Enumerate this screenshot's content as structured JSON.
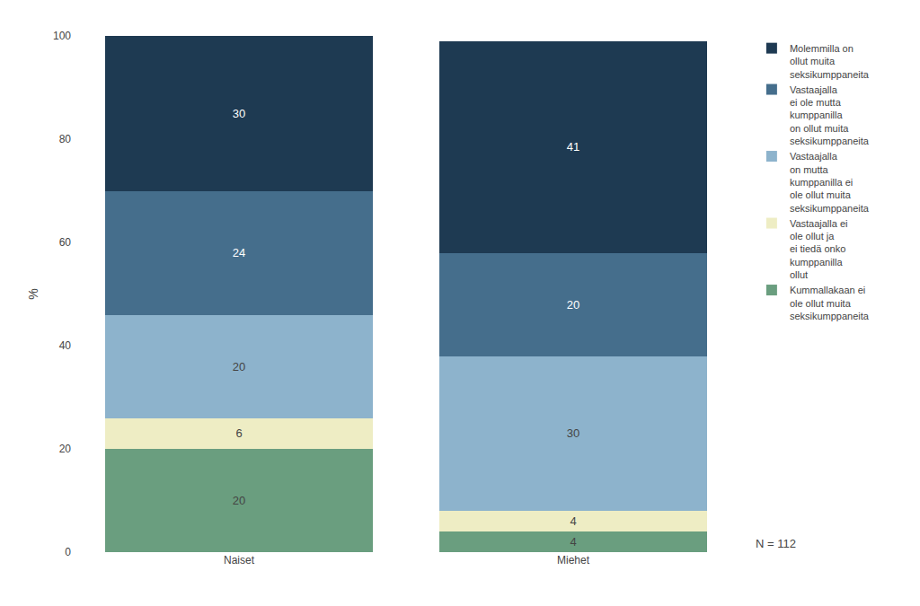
{
  "chart_data": {
    "type": "bar",
    "stacked": true,
    "categories": [
      "Naiset",
      "Miehet"
    ],
    "series": [
      {
        "name": "Kummallakaan ei\nole ollut muita\nseksikumppaneita",
        "color": "#6a9e7f",
        "values": [
          20,
          4
        ]
      },
      {
        "name": "Vastaajalla ei\nole ollut ja\nei tiedä onko\nkumppanilla\nollut",
        "color": "#eeedc4",
        "values": [
          6,
          4
        ]
      },
      {
        "name": "Vastaajalla\non mutta\nkumppanilla ei\nole ollut muita\nseksikumppaneita",
        "color": "#8db3cc",
        "values": [
          20,
          30
        ]
      },
      {
        "name": "Vastaajalla\nei ole mutta\nkumppanilla\non ollut muita\nseksikumppaneita",
        "color": "#456e8c",
        "values": [
          24,
          20
        ]
      },
      {
        "name": "Molemmilla on\nollut muita\nseksikumppaneita",
        "color": "#1e3a52",
        "values": [
          30,
          41
        ]
      }
    ],
    "ylabel": "%",
    "ylim": [
      0,
      100
    ],
    "yticks": [
      0,
      20,
      40,
      60,
      80,
      100
    ],
    "grid": false,
    "data_labels": true,
    "legend": "right",
    "annotations": [
      "N = 112"
    ]
  }
}
